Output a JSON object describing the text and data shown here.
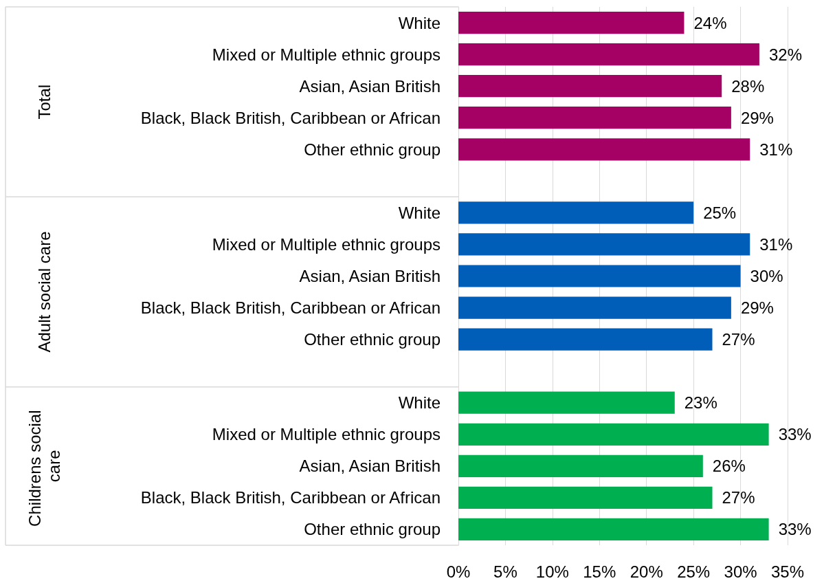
{
  "chart_data": {
    "type": "bar",
    "orientation": "horizontal",
    "categories": [
      "White",
      "Mixed or Multiple ethnic groups",
      "Asian, Asian British",
      "Black, Black British, Caribbean or African",
      "Other ethnic group",
      null,
      "White",
      "Mixed or Multiple ethnic groups",
      "Asian, Asian British",
      "Black, Black British, Caribbean or African",
      "Other ethnic group",
      null,
      "White",
      "Mixed or Multiple ethnic groups",
      "Asian, Asian British",
      "Black, Black British, Caribbean or African",
      "Other ethnic group"
    ],
    "series": [
      {
        "color": "#a50064",
        "values": [
          24,
          32,
          28,
          29,
          31,
          null,
          null,
          null,
          null,
          null,
          null,
          null,
          null,
          null,
          null,
          null,
          null
        ],
        "value_labels": [
          "24%",
          "32%",
          "28%",
          "29%",
          "31%",
          null,
          null,
          null,
          null,
          null,
          null,
          null,
          null,
          null,
          null,
          null,
          null
        ]
      },
      {
        "color": "#005eb8",
        "values": [
          null,
          null,
          null,
          null,
          null,
          null,
          25,
          31,
          30,
          29,
          27,
          null,
          null,
          null,
          null,
          null,
          null
        ],
        "value_labels": [
          null,
          null,
          null,
          null,
          null,
          null,
          "25%",
          "31%",
          "30%",
          "29%",
          "27%",
          null,
          null,
          null,
          null,
          null,
          null
        ]
      },
      {
        "color": "#00b050",
        "values": [
          null,
          null,
          null,
          null,
          null,
          null,
          null,
          null,
          null,
          null,
          null,
          null,
          23,
          33,
          26,
          27,
          33
        ],
        "value_labels": [
          null,
          null,
          null,
          null,
          null,
          null,
          null,
          null,
          null,
          null,
          null,
          null,
          "23%",
          "33%",
          "26%",
          "27%",
          "33%"
        ]
      }
    ],
    "xlim": [
      0,
      35
    ],
    "xticks": [
      {
        "value": 0,
        "label": "0%"
      },
      {
        "value": 5,
        "label": "5%"
      },
      {
        "value": 10,
        "label": "10%"
      },
      {
        "value": 15,
        "label": "15%"
      },
      {
        "value": 20,
        "label": "20%"
      },
      {
        "value": 25,
        "label": "25%"
      },
      {
        "value": 30,
        "label": "30%"
      },
      {
        "value": 35,
        "label": "35%"
      }
    ],
    "annotations": [
      "Total",
      "Adult social care",
      "Childrens social care"
    ],
    "grid": "x"
  }
}
